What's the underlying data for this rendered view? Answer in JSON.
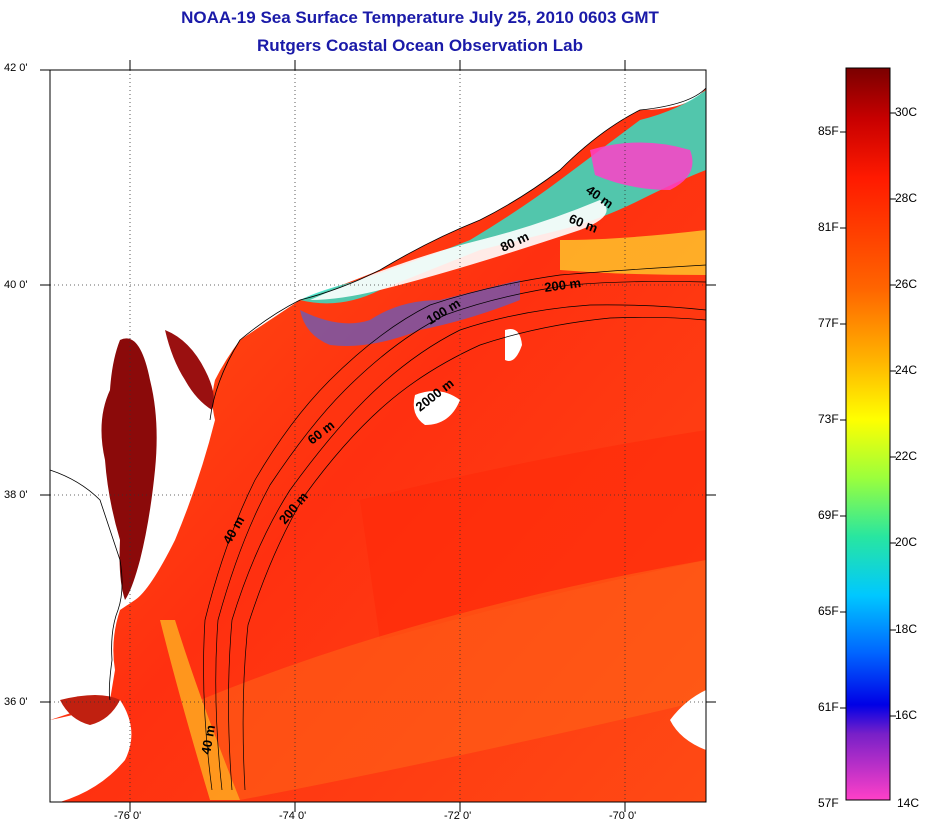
{
  "title": {
    "line1": "NOAA-19 Sea Surface Temperature July 25, 2010 0603 GMT",
    "line2": "Rutgers Coastal Ocean Observation Lab"
  },
  "axes": {
    "lat_labels": [
      "42 0'",
      "40 0'",
      "38 0'",
      "36 0'"
    ],
    "lon_labels": [
      "-76 0'",
      "-74 0'",
      "-72 0'",
      "-70 0'"
    ]
  },
  "isobaths": {
    "labels": [
      "40 m",
      "60 m",
      "80 m",
      "200 m",
      "100 m",
      "2000 m",
      "60 m",
      "40 m",
      "200 m",
      "40 m"
    ]
  },
  "colorbar": {
    "fahrenheit": [
      "85F",
      "81F",
      "77F",
      "73F",
      "69F",
      "65F",
      "61F",
      "57F"
    ],
    "celsius": [
      "30C",
      "28C",
      "26C",
      "24C",
      "22C",
      "20C",
      "18C",
      "16C",
      "14C"
    ]
  },
  "colors": {
    "title": "#1a1aa8",
    "warm_water": "#ff3a12",
    "bay": "#8b0a0a"
  }
}
